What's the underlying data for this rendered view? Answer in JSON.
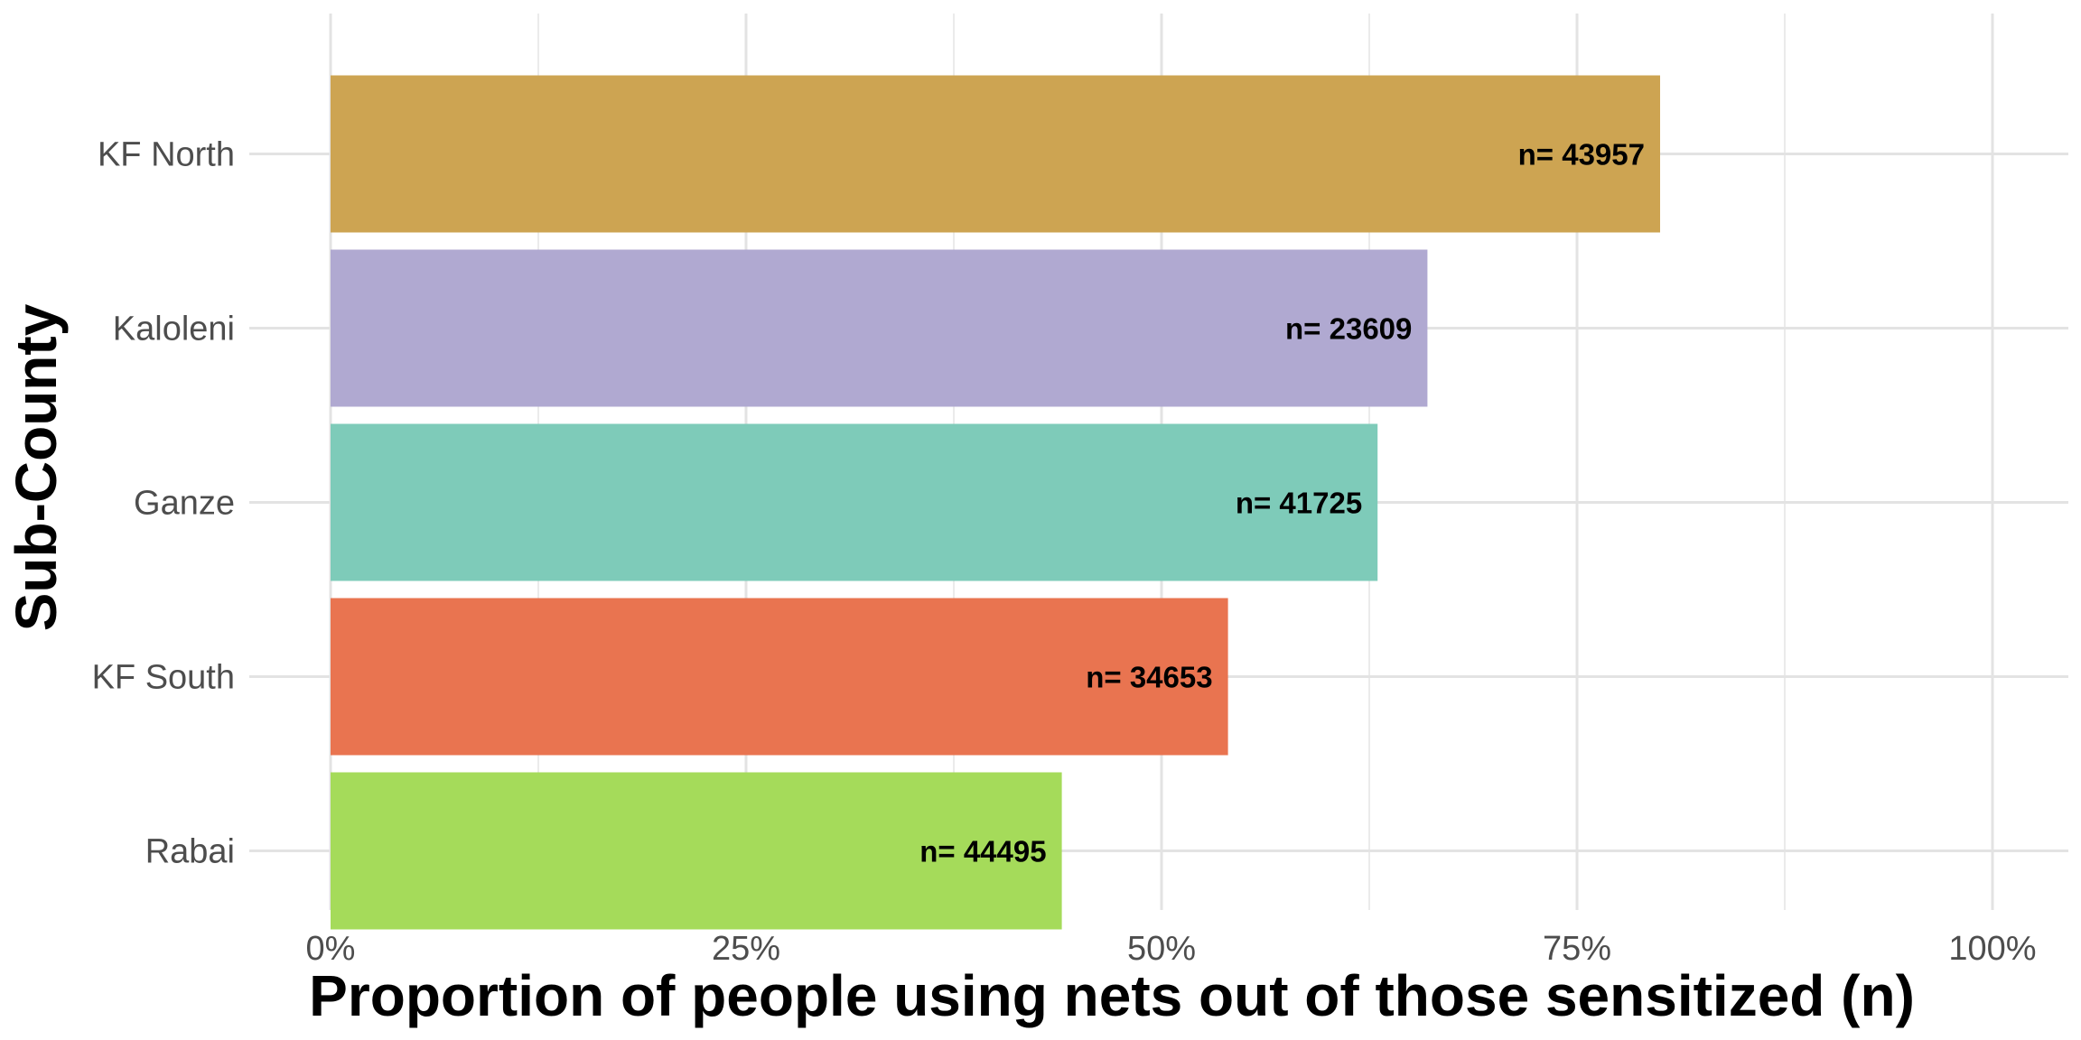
{
  "chart_data": {
    "type": "bar",
    "orientation": "horizontal",
    "xlabel": "Proportion of people using nets out of those sensitized (n)",
    "ylabel": "Sub-County",
    "xlim": [
      0,
      1
    ],
    "x_ticks": [
      0,
      0.25,
      0.5,
      0.75,
      1
    ],
    "x_tick_labels": [
      "0%",
      "25%",
      "50%",
      "75%",
      "100%"
    ],
    "grid": true,
    "legend": "none",
    "categories": [
      "KF North",
      "Kaloleni",
      "Ganze",
      "KF South",
      "Rabai"
    ],
    "values": [
      0.8,
      0.66,
      0.63,
      0.54,
      0.44
    ],
    "labels": [
      "n= 43957",
      "n= 23609",
      "n= 41725",
      "n= 34653",
      "n= 44495"
    ],
    "colors": [
      "#CDA452",
      "#B0A9D1",
      "#7ECBB9",
      "#E97450",
      "#A5DB5A"
    ]
  }
}
